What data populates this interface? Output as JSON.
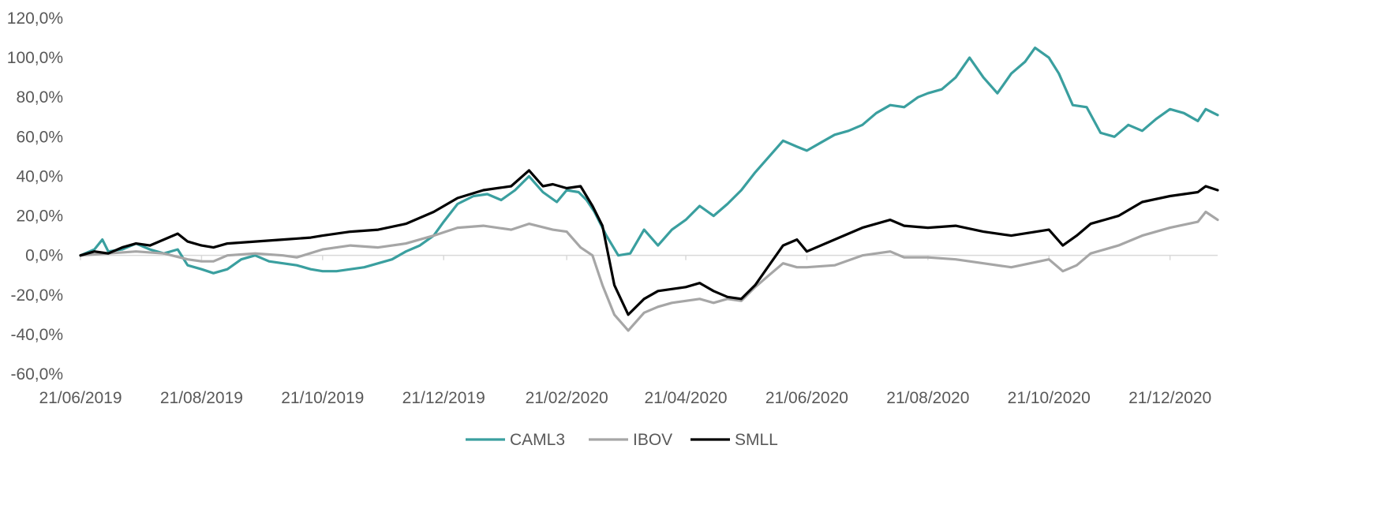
{
  "chart_data": {
    "type": "line",
    "title": "",
    "xlabel": "",
    "ylabel": "",
    "ylim": [
      -60,
      120
    ],
    "y_ticks": [
      "120,0%",
      "100,0%",
      "80,0%",
      "60,0%",
      "40,0%",
      "20,0%",
      "0,0%",
      "-20,0%",
      "-40,0%",
      "-60,0%"
    ],
    "y_tick_values": [
      120,
      100,
      80,
      60,
      40,
      20,
      0,
      -20,
      -40,
      -60
    ],
    "x_range": [
      "2019-06-21",
      "2021-01-14"
    ],
    "x_ticks": [
      "21/06/2019",
      "21/08/2019",
      "21/10/2019",
      "21/12/2019",
      "21/02/2020",
      "21/04/2020",
      "21/06/2020",
      "21/08/2020",
      "21/10/2020",
      "21/12/2020"
    ],
    "x_tick_dates": [
      "2019-06-21",
      "2019-08-21",
      "2019-10-21",
      "2019-12-21",
      "2020-02-21",
      "2020-04-21",
      "2020-06-21",
      "2020-08-21",
      "2020-10-21",
      "2020-12-21"
    ],
    "grid": false,
    "legend_position": "bottom",
    "series": [
      {
        "name": "CAML3",
        "color": "#3a9f9f",
        "points": [
          [
            "2019-06-21",
            0
          ],
          [
            "2019-06-28",
            3
          ],
          [
            "2019-07-02",
            8
          ],
          [
            "2019-07-05",
            2
          ],
          [
            "2019-07-12",
            3
          ],
          [
            "2019-07-19",
            6
          ],
          [
            "2019-07-26",
            3
          ],
          [
            "2019-08-02",
            1
          ],
          [
            "2019-08-09",
            3
          ],
          [
            "2019-08-14",
            -5
          ],
          [
            "2019-08-21",
            -7
          ],
          [
            "2019-08-27",
            -9
          ],
          [
            "2019-09-03",
            -7
          ],
          [
            "2019-09-10",
            -2
          ],
          [
            "2019-09-17",
            0
          ],
          [
            "2019-09-24",
            -3
          ],
          [
            "2019-10-01",
            -4
          ],
          [
            "2019-10-08",
            -5
          ],
          [
            "2019-10-15",
            -7
          ],
          [
            "2019-10-21",
            -8
          ],
          [
            "2019-10-28",
            -8
          ],
          [
            "2019-11-04",
            -7
          ],
          [
            "2019-11-11",
            -6
          ],
          [
            "2019-11-18",
            -4
          ],
          [
            "2019-11-25",
            -2
          ],
          [
            "2019-12-02",
            2
          ],
          [
            "2019-12-09",
            5
          ],
          [
            "2019-12-16",
            10
          ],
          [
            "2019-12-21",
            17
          ],
          [
            "2019-12-28",
            26
          ],
          [
            "2020-01-05",
            30
          ],
          [
            "2020-01-12",
            31
          ],
          [
            "2020-01-19",
            28
          ],
          [
            "2020-01-26",
            33
          ],
          [
            "2020-02-02",
            40
          ],
          [
            "2020-02-09",
            32
          ],
          [
            "2020-02-16",
            27
          ],
          [
            "2020-02-21",
            33
          ],
          [
            "2020-02-27",
            32
          ],
          [
            "2020-03-02",
            28
          ],
          [
            "2020-03-06",
            22
          ],
          [
            "2020-03-12",
            10
          ],
          [
            "2020-03-18",
            0
          ],
          [
            "2020-03-24",
            1
          ],
          [
            "2020-03-31",
            13
          ],
          [
            "2020-04-07",
            5
          ],
          [
            "2020-04-14",
            13
          ],
          [
            "2020-04-21",
            18
          ],
          [
            "2020-04-28",
            25
          ],
          [
            "2020-05-05",
            20
          ],
          [
            "2020-05-12",
            26
          ],
          [
            "2020-05-19",
            33
          ],
          [
            "2020-05-26",
            42
          ],
          [
            "2020-06-02",
            50
          ],
          [
            "2020-06-09",
            58
          ],
          [
            "2020-06-16",
            55
          ],
          [
            "2020-06-21",
            53
          ],
          [
            "2020-06-28",
            57
          ],
          [
            "2020-07-05",
            61
          ],
          [
            "2020-07-12",
            63
          ],
          [
            "2020-07-19",
            66
          ],
          [
            "2020-07-26",
            72
          ],
          [
            "2020-08-02",
            76
          ],
          [
            "2020-08-09",
            75
          ],
          [
            "2020-08-16",
            80
          ],
          [
            "2020-08-21",
            82
          ],
          [
            "2020-08-28",
            84
          ],
          [
            "2020-09-04",
            90
          ],
          [
            "2020-09-11",
            100
          ],
          [
            "2020-09-18",
            90
          ],
          [
            "2020-09-25",
            82
          ],
          [
            "2020-10-02",
            92
          ],
          [
            "2020-10-09",
            98
          ],
          [
            "2020-10-14",
            105
          ],
          [
            "2020-10-21",
            100
          ],
          [
            "2020-10-26",
            92
          ],
          [
            "2020-11-02",
            76
          ],
          [
            "2020-11-09",
            75
          ],
          [
            "2020-11-16",
            62
          ],
          [
            "2020-11-23",
            60
          ],
          [
            "2020-11-30",
            66
          ],
          [
            "2020-12-07",
            63
          ],
          [
            "2020-12-14",
            69
          ],
          [
            "2020-12-21",
            74
          ],
          [
            "2020-12-28",
            72
          ],
          [
            "2021-01-04",
            68
          ],
          [
            "2021-01-08",
            74
          ],
          [
            "2021-01-14",
            71
          ]
        ]
      },
      {
        "name": "IBOV",
        "color": "#a6a6a6",
        "points": [
          [
            "2019-06-21",
            0
          ],
          [
            "2019-07-05",
            1
          ],
          [
            "2019-07-19",
            2
          ],
          [
            "2019-08-02",
            1
          ],
          [
            "2019-08-14",
            -2
          ],
          [
            "2019-08-21",
            -3
          ],
          [
            "2019-08-27",
            -3
          ],
          [
            "2019-09-03",
            0
          ],
          [
            "2019-09-17",
            1
          ],
          [
            "2019-10-01",
            0
          ],
          [
            "2019-10-08",
            -1
          ],
          [
            "2019-10-21",
            3
          ],
          [
            "2019-11-04",
            5
          ],
          [
            "2019-11-18",
            4
          ],
          [
            "2019-12-02",
            6
          ],
          [
            "2019-12-16",
            10
          ],
          [
            "2019-12-28",
            14
          ],
          [
            "2020-01-10",
            15
          ],
          [
            "2020-01-24",
            13
          ],
          [
            "2020-02-02",
            16
          ],
          [
            "2020-02-14",
            13
          ],
          [
            "2020-02-21",
            12
          ],
          [
            "2020-02-28",
            4
          ],
          [
            "2020-03-05",
            0
          ],
          [
            "2020-03-10",
            -15
          ],
          [
            "2020-03-16",
            -30
          ],
          [
            "2020-03-23",
            -38
          ],
          [
            "2020-03-31",
            -29
          ],
          [
            "2020-04-07",
            -26
          ],
          [
            "2020-04-14",
            -24
          ],
          [
            "2020-04-21",
            -23
          ],
          [
            "2020-04-28",
            -22
          ],
          [
            "2020-05-05",
            -24
          ],
          [
            "2020-05-12",
            -22
          ],
          [
            "2020-05-19",
            -23
          ],
          [
            "2020-05-26",
            -16
          ],
          [
            "2020-06-02",
            -10
          ],
          [
            "2020-06-09",
            -4
          ],
          [
            "2020-06-16",
            -6
          ],
          [
            "2020-06-21",
            -6
          ],
          [
            "2020-07-05",
            -5
          ],
          [
            "2020-07-19",
            0
          ],
          [
            "2020-08-02",
            2
          ],
          [
            "2020-08-09",
            -1
          ],
          [
            "2020-08-21",
            -1
          ],
          [
            "2020-09-04",
            -2
          ],
          [
            "2020-09-18",
            -4
          ],
          [
            "2020-10-02",
            -6
          ],
          [
            "2020-10-21",
            -2
          ],
          [
            "2020-10-28",
            -8
          ],
          [
            "2020-11-04",
            -5
          ],
          [
            "2020-11-11",
            1
          ],
          [
            "2020-11-25",
            5
          ],
          [
            "2020-12-07",
            10
          ],
          [
            "2020-12-21",
            14
          ],
          [
            "2021-01-04",
            17
          ],
          [
            "2021-01-08",
            22
          ],
          [
            "2021-01-14",
            18
          ]
        ]
      },
      {
        "name": "SMLL",
        "color": "#000000",
        "points": [
          [
            "2019-06-21",
            0
          ],
          [
            "2019-06-28",
            2
          ],
          [
            "2019-07-05",
            1
          ],
          [
            "2019-07-12",
            4
          ],
          [
            "2019-07-19",
            6
          ],
          [
            "2019-07-26",
            5
          ],
          [
            "2019-08-02",
            8
          ],
          [
            "2019-08-09",
            11
          ],
          [
            "2019-08-14",
            7
          ],
          [
            "2019-08-21",
            5
          ],
          [
            "2019-08-27",
            4
          ],
          [
            "2019-09-03",
            6
          ],
          [
            "2019-09-17",
            7
          ],
          [
            "2019-10-01",
            8
          ],
          [
            "2019-10-15",
            9
          ],
          [
            "2019-10-21",
            10
          ],
          [
            "2019-11-04",
            12
          ],
          [
            "2019-11-18",
            13
          ],
          [
            "2019-12-02",
            16
          ],
          [
            "2019-12-16",
            22
          ],
          [
            "2019-12-28",
            29
          ],
          [
            "2020-01-10",
            33
          ],
          [
            "2020-01-24",
            35
          ],
          [
            "2020-02-02",
            43
          ],
          [
            "2020-02-09",
            35
          ],
          [
            "2020-02-14",
            36
          ],
          [
            "2020-02-21",
            34
          ],
          [
            "2020-02-28",
            35
          ],
          [
            "2020-03-05",
            25
          ],
          [
            "2020-03-10",
            15
          ],
          [
            "2020-03-16",
            -15
          ],
          [
            "2020-03-23",
            -30
          ],
          [
            "2020-03-31",
            -22
          ],
          [
            "2020-04-07",
            -18
          ],
          [
            "2020-04-14",
            -17
          ],
          [
            "2020-04-21",
            -16
          ],
          [
            "2020-04-28",
            -14
          ],
          [
            "2020-05-05",
            -18
          ],
          [
            "2020-05-12",
            -21
          ],
          [
            "2020-05-19",
            -22
          ],
          [
            "2020-05-26",
            -15
          ],
          [
            "2020-06-02",
            -5
          ],
          [
            "2020-06-09",
            5
          ],
          [
            "2020-06-16",
            8
          ],
          [
            "2020-06-21",
            2
          ],
          [
            "2020-07-05",
            8
          ],
          [
            "2020-07-19",
            14
          ],
          [
            "2020-08-02",
            18
          ],
          [
            "2020-08-09",
            15
          ],
          [
            "2020-08-21",
            14
          ],
          [
            "2020-09-04",
            15
          ],
          [
            "2020-09-18",
            12
          ],
          [
            "2020-10-02",
            10
          ],
          [
            "2020-10-21",
            13
          ],
          [
            "2020-10-28",
            5
          ],
          [
            "2020-11-04",
            10
          ],
          [
            "2020-11-11",
            16
          ],
          [
            "2020-11-25",
            20
          ],
          [
            "2020-12-07",
            27
          ],
          [
            "2020-12-21",
            30
          ],
          [
            "2021-01-04",
            32
          ],
          [
            "2021-01-08",
            35
          ],
          [
            "2021-01-14",
            33
          ]
        ]
      }
    ]
  }
}
